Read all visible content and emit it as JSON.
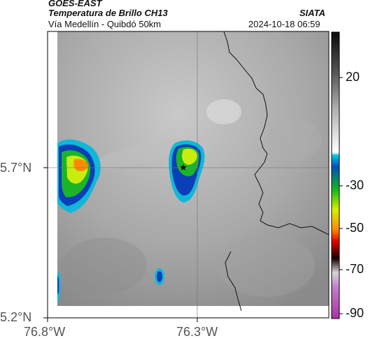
{
  "header": {
    "satellite": "GOES-EAST",
    "product": "Temperatura de Brillo CH13",
    "region": "Vía Medellín - Quibdó 50km",
    "source": "SIATA",
    "timestamp": "2024-10-18 06:59"
  },
  "axes": {
    "y_ticks": [
      "5.7°N",
      "5.2°N"
    ],
    "x_ticks": [
      "76.8°W",
      "76.3°W"
    ]
  },
  "colorbar": {
    "ticks": [
      "20",
      "-30",
      "-50",
      "-70",
      "-90"
    ]
  },
  "marker": {
    "icon": "star-icon"
  }
}
